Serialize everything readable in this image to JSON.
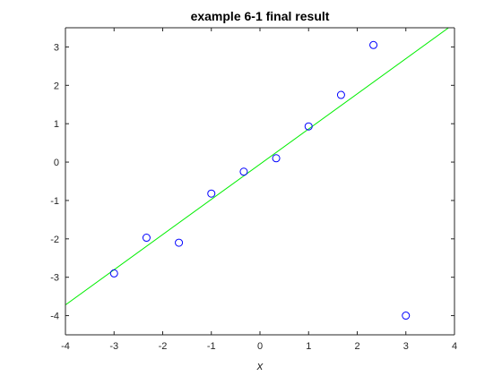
{
  "chart_data": {
    "type": "scatter",
    "title": "example 6-1 final result",
    "xlabel": "x",
    "ylabel": "",
    "xlim": [
      -4,
      4
    ],
    "ylim": [
      -4.5,
      3.5
    ],
    "xticks": [
      -4,
      -3,
      -2,
      -1,
      0,
      1,
      2,
      3,
      4
    ],
    "yticks": [
      -4,
      -3,
      -2,
      -1,
      0,
      1,
      2,
      3
    ],
    "xtick_labels": [
      "-4",
      "-3",
      "-2",
      "-1",
      "0",
      "1",
      "2",
      "3",
      "4"
    ],
    "ytick_labels": [
      "-4",
      "-3",
      "-2",
      "-1",
      "0",
      "1",
      "2",
      "3"
    ],
    "grid": false,
    "series": [
      {
        "type": "scatter",
        "marker": "open-circle",
        "color": "#0000ff",
        "x": [
          -3.0,
          -2.333,
          -1.667,
          -1.0,
          -0.333,
          0.333,
          1.0,
          1.667,
          2.333,
          3.0
        ],
        "y": [
          -2.9,
          -1.97,
          -2.1,
          -0.82,
          -0.25,
          0.1,
          0.93,
          1.75,
          3.05,
          -4.0
        ]
      },
      {
        "type": "line",
        "color": "#00ee00",
        "x": [
          -4.0,
          3.9
        ],
        "y": [
          -3.72,
          3.52
        ]
      }
    ]
  }
}
